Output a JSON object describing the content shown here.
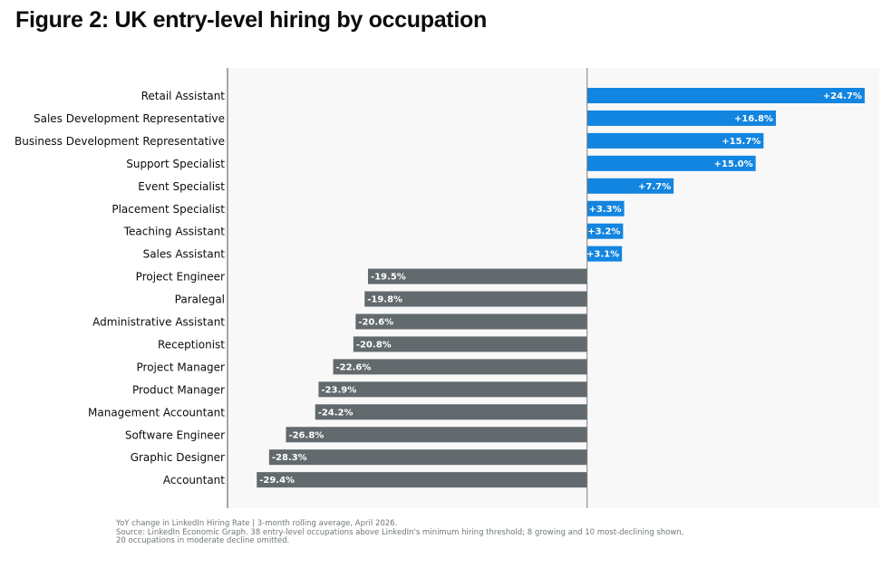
{
  "title": "Figure 2: UK entry-level hiring by occupation",
  "chart_data": {
    "type": "bar",
    "orientation": "horizontal",
    "categories": [
      "Retail Assistant",
      "Sales Development Representative",
      "Business Development Representative",
      "Support Specialist",
      "Event Specialist",
      "Placement Specialist",
      "Teaching Assistant",
      "Sales Assistant",
      "Project Engineer",
      "Paralegal",
      "Administrative Assistant",
      "Receptionist",
      "Project Manager",
      "Product Manager",
      "Management Accountant",
      "Software Engineer",
      "Graphic Designer",
      "Accountant"
    ],
    "values": [
      24.7,
      16.8,
      15.7,
      15.0,
      7.7,
      3.3,
      3.2,
      3.1,
      -19.5,
      -19.8,
      -20.6,
      -20.8,
      -22.6,
      -23.9,
      -24.2,
      -26.8,
      -28.3,
      -29.4
    ],
    "value_labels": [
      "+24.7%",
      "+16.8%",
      "+15.7%",
      "+15.0%",
      "+7.7%",
      "+3.3%",
      "+3.2%",
      "+3.1%",
      "-19.5%",
      "-19.8%",
      "-20.6%",
      "-20.8%",
      "-22.6%",
      "-23.9%",
      "-24.2%",
      "-26.8%",
      "-28.3%",
      "-29.4%"
    ],
    "xlim": [
      -32,
      26
    ],
    "colors": {
      "positive": "#1285e0",
      "negative": "#626a6e",
      "plot_bg": "#f8f8f8",
      "axis": "#505050"
    },
    "grid": false,
    "legend": "none"
  },
  "notes": [
    "YoY change in LinkedIn Hiring Rate | 3-month rolling average, April 2026.",
    "Source: LinkedIn Economic Graph. 38 entry-level occupations above LinkedIn's minimum hiring threshold; 8 growing and 10 most-declining shown,",
    "20 occupations in moderate decline omitted."
  ]
}
